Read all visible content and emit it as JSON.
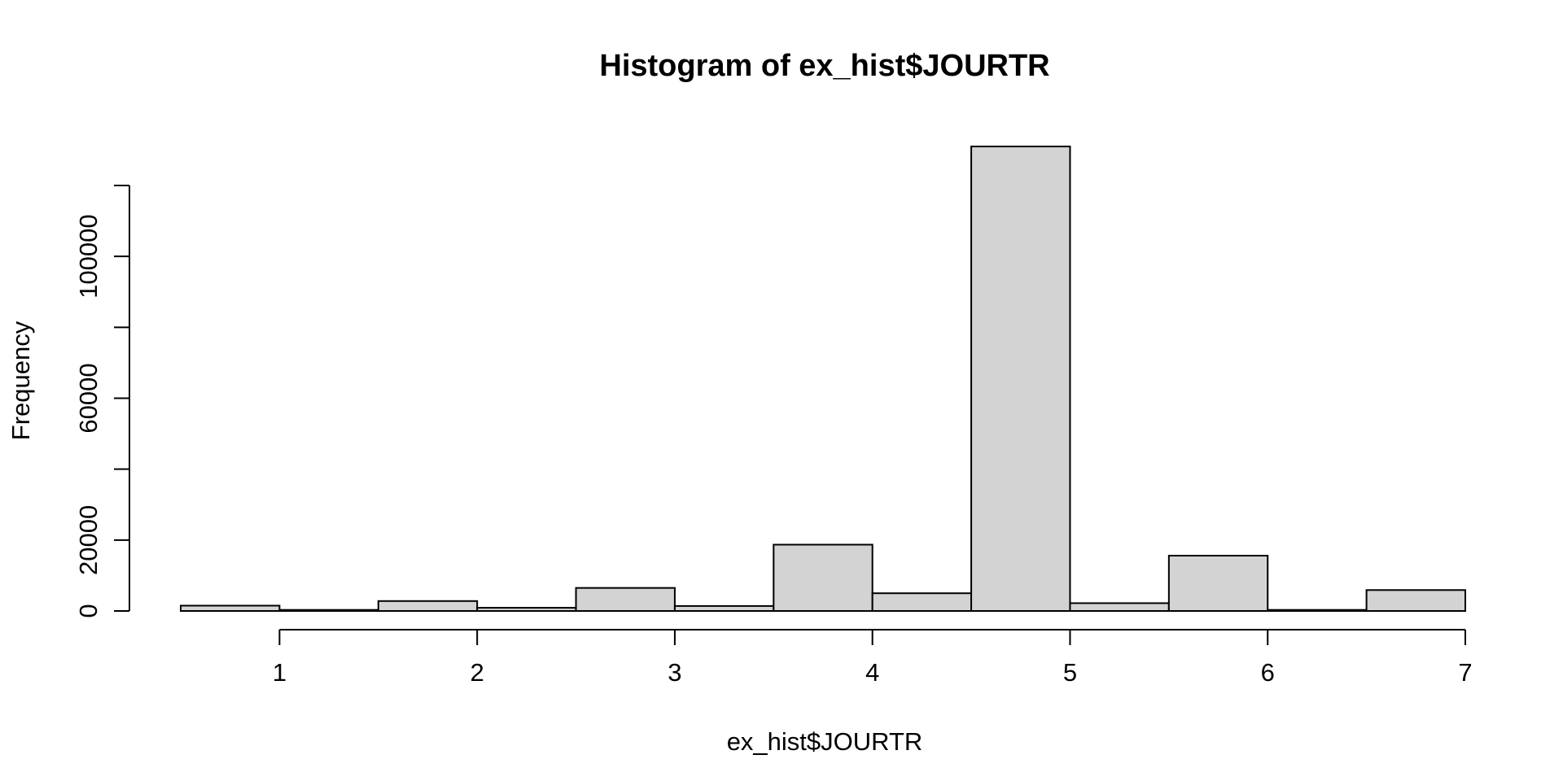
{
  "chart_data": {
    "type": "bar",
    "title": "Histogram of ex_hist$JOURTR",
    "xlabel": "ex_hist$JOURTR",
    "ylabel": "Frequency",
    "bin_edges": [
      0.5,
      1.0,
      1.5,
      2.0,
      2.5,
      3.0,
      3.5,
      4.0,
      4.5,
      5.0,
      5.5,
      6.0,
      6.5,
      7.0
    ],
    "values": [
      1500,
      300,
      2800,
      900,
      6500,
      1400,
      18700,
      5000,
      131000,
      2200,
      15600,
      300,
      5900
    ],
    "xlim": [
      0.5,
      7.0
    ],
    "ylim": [
      0,
      120000
    ],
    "xticks": [
      1,
      2,
      3,
      4,
      5,
      6,
      7
    ],
    "yticks": [
      0,
      20000,
      40000,
      60000,
      80000,
      100000,
      120000
    ],
    "ytick_labels": [
      "0",
      "20000",
      "",
      "60000",
      "",
      "100000",
      ""
    ],
    "xtick_labels": [
      "1",
      "2",
      "3",
      "4",
      "5",
      "6",
      "7"
    ],
    "bar_color": "#d3d3d3",
    "grid": false,
    "legend": "none"
  }
}
